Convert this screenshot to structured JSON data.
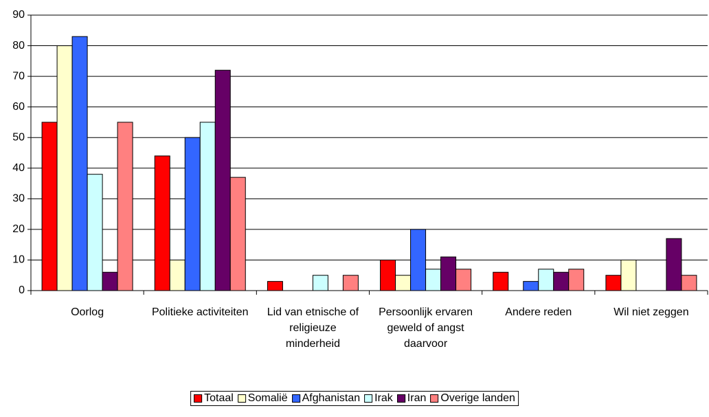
{
  "chart_data": {
    "type": "bar",
    "categories": [
      "Oorlog",
      "Politieke activiteiten",
      "Lid van etnische of religieuze minderheid",
      "Persoonlijk ervaren geweld of angst daarvoor",
      "Andere reden",
      "Wil niet zeggen"
    ],
    "series": [
      {
        "name": "Totaal",
        "color": "#ff0000",
        "values": [
          55,
          44,
          3,
          10,
          6,
          5
        ]
      },
      {
        "name": "Somalië",
        "color": "#ffffcc",
        "values": [
          80,
          10,
          0,
          5,
          0,
          10
        ]
      },
      {
        "name": "Afghanistan",
        "color": "#3366ff",
        "values": [
          83,
          50,
          0,
          20,
          3,
          0
        ]
      },
      {
        "name": "Irak",
        "color": "#ccffff",
        "values": [
          38,
          55,
          5,
          7,
          7,
          0
        ]
      },
      {
        "name": "Iran",
        "color": "#660066",
        "values": [
          6,
          72,
          0,
          11,
          6,
          17
        ]
      },
      {
        "name": "Overige landen",
        "color": "#ff8080",
        "values": [
          55,
          37,
          5,
          7,
          7,
          5
        ]
      }
    ],
    "ylim": [
      0,
      90
    ],
    "yticks": [
      0,
      10,
      20,
      30,
      40,
      50,
      60,
      70,
      80,
      90
    ],
    "grid": true,
    "legend": "bottom"
  }
}
